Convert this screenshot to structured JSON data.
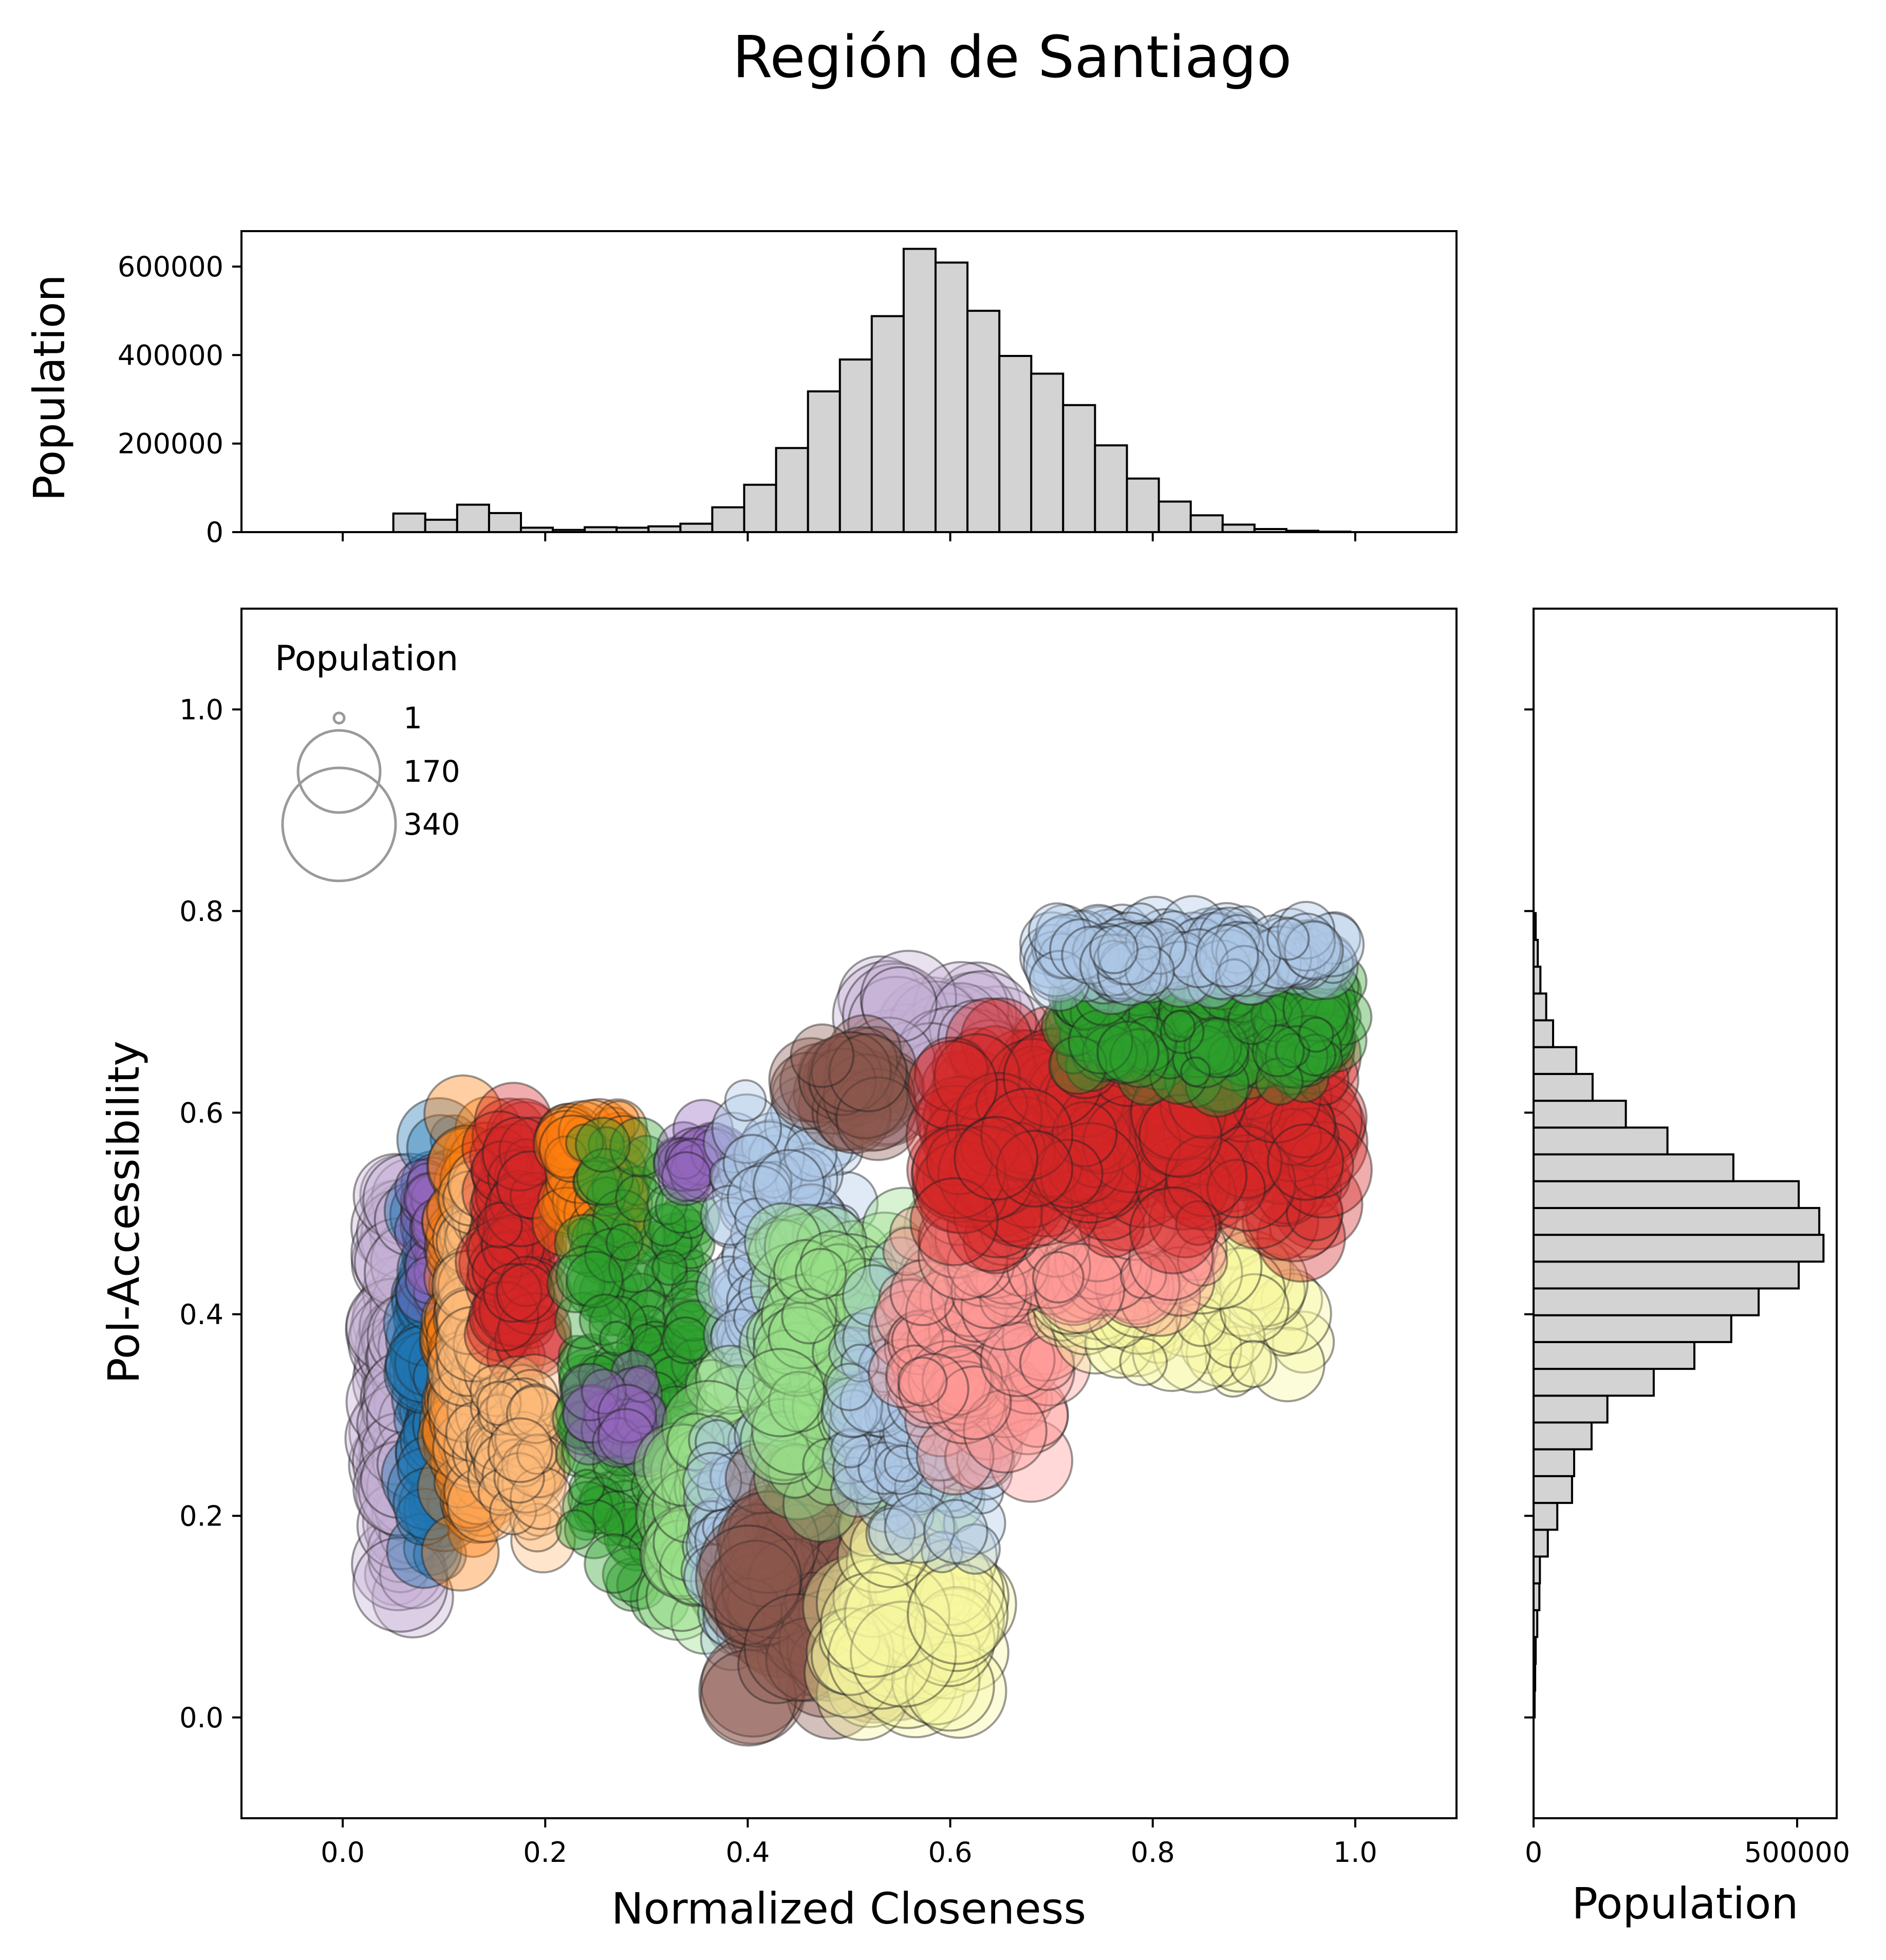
{
  "colors": {
    "hist_fill": "#d3d3d3",
    "hist_edge": "#000000",
    "palette": [
      "#1f77b4",
      "#ff7f0e",
      "#2ca02c",
      "#d62728",
      "#9467bd",
      "#8c564b",
      "#aec7e8",
      "#ffbb78",
      "#98df8a",
      "#ff9896",
      "#c5b0d5",
      "#c49c94",
      "#f7f7a0",
      "#e3a7c9",
      "#7f7f7f"
    ]
  },
  "chart_data": [
    {
      "type": "scatter",
      "title": "Región de Santiago",
      "xlabel": "Normalized Closeness",
      "ylabel": "Pol-Accessibility",
      "xlim": [
        -0.1,
        1.1
      ],
      "ylim": [
        -0.1,
        1.1
      ],
      "xticks": [
        "0.0",
        "0.2",
        "0.4",
        "0.6",
        "0.8",
        "1.0"
      ],
      "yticks": [
        "0.0",
        "0.2",
        "0.4",
        "0.6",
        "0.8",
        "1.0"
      ],
      "grid": false,
      "size_legend": {
        "title": "Population",
        "placement": "top-left",
        "entries": [
          "1",
          "170",
          "340"
        ]
      },
      "clusters": [
        {
          "color": 10,
          "x": [
            0.05,
            0.075
          ],
          "y": [
            0.08,
            0.57
          ],
          "n": 120,
          "pop": [
            60,
            260
          ]
        },
        {
          "color": 0,
          "x": [
            0.08,
            0.11
          ],
          "y": [
            0.13,
            0.6
          ],
          "n": 110,
          "pop": [
            40,
            200
          ]
        },
        {
          "color": 4,
          "x": [
            0.08,
            0.1
          ],
          "y": [
            0.4,
            0.57
          ],
          "n": 25,
          "pop": [
            20,
            80
          ]
        },
        {
          "color": 1,
          "x": [
            0.11,
            0.145
          ],
          "y": [
            0.15,
            0.62
          ],
          "n": 130,
          "pop": [
            40,
            180
          ]
        },
        {
          "color": 7,
          "x": [
            0.12,
            0.16
          ],
          "y": [
            0.2,
            0.55
          ],
          "n": 100,
          "pop": [
            30,
            150
          ]
        },
        {
          "color": 3,
          "x": [
            0.15,
            0.19
          ],
          "y": [
            0.35,
            0.61
          ],
          "n": 90,
          "pop": [
            30,
            150
          ]
        },
        {
          "color": 7,
          "x": [
            0.15,
            0.2
          ],
          "y": [
            0.15,
            0.35
          ],
          "n": 60,
          "pop": [
            20,
            100
          ]
        },
        {
          "color": 1,
          "x": [
            0.22,
            0.28
          ],
          "y": [
            0.45,
            0.6
          ],
          "n": 50,
          "pop": [
            30,
            120
          ]
        },
        {
          "color": 2,
          "x": [
            0.23,
            0.35
          ],
          "y": [
            0.08,
            0.6
          ],
          "n": 200,
          "pop": [
            10,
            80
          ]
        },
        {
          "color": 4,
          "x": [
            0.24,
            0.3
          ],
          "y": [
            0.23,
            0.38
          ],
          "n": 20,
          "pop": [
            20,
            80
          ]
        },
        {
          "color": 4,
          "x": [
            0.33,
            0.38
          ],
          "y": [
            0.52,
            0.59
          ],
          "n": 20,
          "pop": [
            20,
            80
          ]
        },
        {
          "color": 6,
          "x": [
            0.38,
            0.5
          ],
          "y": [
            0.3,
            0.64
          ],
          "n": 110,
          "pop": [
            20,
            120
          ]
        },
        {
          "color": 8,
          "x": [
            0.33,
            0.47
          ],
          "y": [
            0.05,
            0.35
          ],
          "n": 120,
          "pop": [
            40,
            220
          ]
        },
        {
          "color": 6,
          "x": [
            0.36,
            0.47
          ],
          "y": [
            0.05,
            0.3
          ],
          "n": 120,
          "pop": [
            20,
            100
          ]
        },
        {
          "color": 5,
          "x": [
            0.4,
            0.55
          ],
          "y": [
            0.0,
            0.25
          ],
          "n": 100,
          "pop": [
            60,
            300
          ]
        },
        {
          "color": 12,
          "x": [
            0.5,
            0.62
          ],
          "y": [
            0.0,
            0.2
          ],
          "n": 60,
          "pop": [
            60,
            300
          ]
        },
        {
          "color": 8,
          "x": [
            0.43,
            0.6
          ],
          "y": [
            0.2,
            0.5
          ],
          "n": 140,
          "pop": [
            40,
            200
          ]
        },
        {
          "color": 6,
          "x": [
            0.5,
            0.65
          ],
          "y": [
            0.15,
            0.45
          ],
          "n": 110,
          "pop": [
            20,
            120
          ]
        },
        {
          "color": 9,
          "x": [
            0.55,
            0.7
          ],
          "y": [
            0.25,
            0.5
          ],
          "n": 80,
          "pop": [
            40,
            200
          ]
        },
        {
          "color": 10,
          "x": [
            0.52,
            0.65
          ],
          "y": [
            0.6,
            0.72
          ],
          "n": 60,
          "pop": [
            80,
            340
          ]
        },
        {
          "color": 5,
          "x": [
            0.45,
            0.55
          ],
          "y": [
            0.58,
            0.68
          ],
          "n": 30,
          "pop": [
            60,
            200
          ]
        },
        {
          "color": 12,
          "x": [
            0.7,
            0.95
          ],
          "y": [
            0.3,
            0.5
          ],
          "n": 60,
          "pop": [
            30,
            200
          ]
        },
        {
          "color": 9,
          "x": [
            0.6,
            0.85
          ],
          "y": [
            0.4,
            0.55
          ],
          "n": 80,
          "pop": [
            30,
            200
          ]
        },
        {
          "color": 3,
          "x": [
            0.6,
            0.97
          ],
          "y": [
            0.47,
            0.69
          ],
          "n": 300,
          "pop": [
            30,
            260
          ]
        },
        {
          "color": 2,
          "x": [
            0.72,
            0.99
          ],
          "y": [
            0.62,
            0.77
          ],
          "n": 220,
          "pop": [
            10,
            100
          ]
        },
        {
          "color": 6,
          "x": [
            0.7,
            0.98
          ],
          "y": [
            0.72,
            0.79
          ],
          "n": 150,
          "pop": [
            20,
            100
          ]
        }
      ]
    },
    {
      "type": "bar",
      "orientation": "vertical",
      "ylabel": "Population",
      "xlim": [
        -0.1,
        1.1
      ],
      "ylim": [
        0,
        680000
      ],
      "yticks": [
        "0",
        "200000",
        "400000",
        "600000"
      ],
      "bin_start": 0.05,
      "bin_width": 0.0315,
      "values": [
        42000,
        28000,
        62000,
        43000,
        10000,
        5000,
        11000,
        10000,
        13000,
        19000,
        56000,
        107000,
        190000,
        318000,
        390000,
        488000,
        640000,
        609000,
        500000,
        398000,
        358000,
        287000,
        196000,
        121000,
        69000,
        38000,
        17000,
        7000,
        3000,
        1000
      ]
    },
    {
      "type": "bar",
      "orientation": "horizontal",
      "xlabel": "Population",
      "xlim": [
        0,
        575000
      ],
      "ylim": [
        -0.1,
        1.1
      ],
      "xticks": [
        "0",
        "500000"
      ],
      "bin_start": 0.0,
      "bin_width": 0.0266,
      "values": [
        2000,
        3000,
        4000,
        7000,
        11000,
        12000,
        27000,
        45000,
        73000,
        77000,
        110000,
        140000,
        228000,
        305000,
        375000,
        427000,
        503000,
        550000,
        542000,
        503000,
        379000,
        254000,
        175000,
        112000,
        81000,
        37000,
        24000,
        13000,
        8000,
        4000
      ]
    }
  ]
}
